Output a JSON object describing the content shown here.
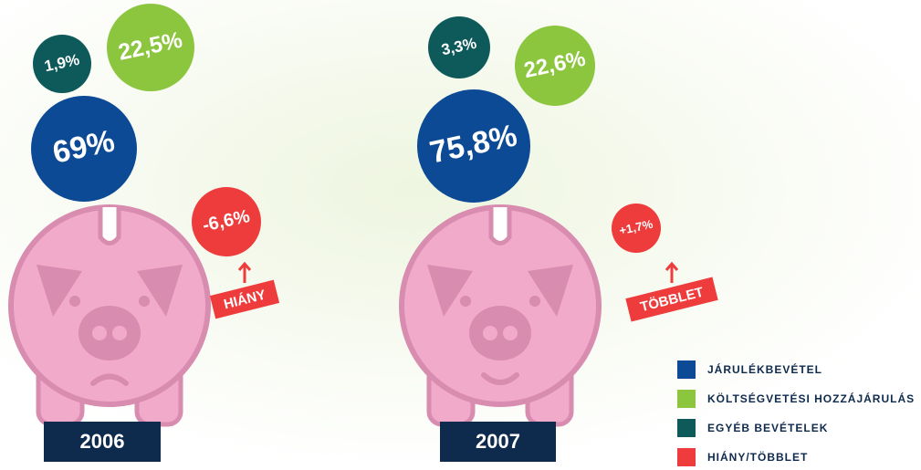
{
  "panels": [
    {
      "year": "2006",
      "coins": [
        "69%",
        "1,9%",
        "22,5%"
      ],
      "balance": "-6,6%",
      "tag": "HIÁNY"
    },
    {
      "year": "2007",
      "coins": [
        "75,8%",
        "3,3%",
        "22,6%"
      ],
      "balance": "+1,7%",
      "tag": "TÖBBLET"
    }
  ],
  "legend": [
    {
      "label": "JÁRULÉKBEVÉTEL",
      "color": "#0c4a95"
    },
    {
      "label": "EGYÉB BEVÉTELEK",
      "color": "#0e5a5a"
    },
    {
      "label": "KÖLTSÉGVETÉSI HOZZÁJÁRULÁS",
      "color": "#8cc63f"
    },
    {
      "label": "HIÁNY/TÖBBLET",
      "color": "#ee3b3b"
    }
  ]
}
